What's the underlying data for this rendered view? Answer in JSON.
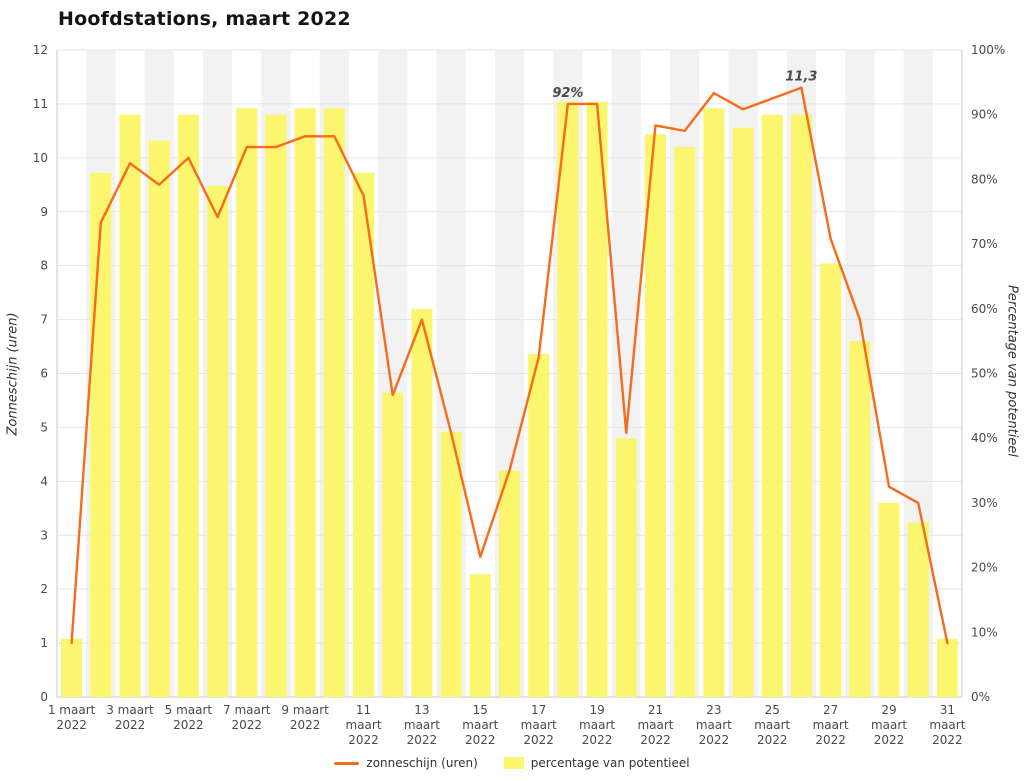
{
  "title": "Hoofdstations, maart 2022",
  "legend": {
    "items": [
      {
        "label": "zonneschijn (uren)",
        "type": "line"
      },
      {
        "label": "percentage van potentieel",
        "type": "bar"
      }
    ]
  },
  "chart_data": {
    "type": "combo-column-line",
    "title": "Hoofdstations, maart 2022",
    "x_days": [
      1,
      2,
      3,
      4,
      5,
      6,
      7,
      8,
      9,
      10,
      11,
      12,
      13,
      14,
      15,
      16,
      17,
      18,
      19,
      20,
      21,
      22,
      23,
      24,
      25,
      26,
      27,
      28,
      29,
      30,
      31
    ],
    "x_month": "maart",
    "x_year": "2022",
    "x_tick_days": [
      1,
      3,
      5,
      7,
      9,
      11,
      13,
      15,
      17,
      19,
      21,
      23,
      25,
      27,
      29,
      31
    ],
    "yaxis_left": {
      "label": "Zonneschijn (uren)",
      "min": 0,
      "max": 12,
      "tick": 1,
      "suffix": ""
    },
    "yaxis_right": {
      "label": "Percentage van potentieel",
      "min": 0,
      "max": 100,
      "tick": 10,
      "suffix": "%"
    },
    "series": [
      {
        "name": "zonneschijn (uren)",
        "type": "line",
        "axis": "left",
        "color": "#F76B1C",
        "values": [
          1.0,
          8.8,
          9.9,
          9.5,
          10.0,
          8.9,
          10.2,
          10.2,
          10.4,
          10.4,
          9.3,
          5.6,
          7.0,
          4.9,
          2.6,
          4.2,
          6.3,
          11.0,
          11.0,
          4.9,
          10.6,
          10.5,
          11.2,
          10.9,
          11.1,
          11.3,
          8.5,
          7.0,
          3.9,
          3.6,
          1.0
        ]
      },
      {
        "name": "percentage van potentieel",
        "type": "column",
        "axis": "right",
        "color": "#FBF66E",
        "values": [
          9,
          81,
          90,
          86,
          90,
          79,
          91,
          90,
          91,
          91,
          81,
          47,
          60,
          41,
          19,
          35,
          53,
          92,
          92,
          40,
          87,
          85,
          91,
          88,
          90,
          90,
          67,
          55,
          30,
          27,
          9
        ]
      }
    ],
    "annotations": [
      {
        "text": "92%",
        "day": 18,
        "value": 11.0,
        "color": "#A3A03B"
      },
      {
        "text": "11,3",
        "day": 26,
        "value": 11.3,
        "color": "#F76B1C"
      }
    ],
    "grid": "horizontal",
    "legend_position": "bottom",
    "colors": {
      "band": "#F2F2F2",
      "grid": "#E4E4E4",
      "axis": "#C8C8C8",
      "tick_text": "#4A4A4A"
    }
  }
}
